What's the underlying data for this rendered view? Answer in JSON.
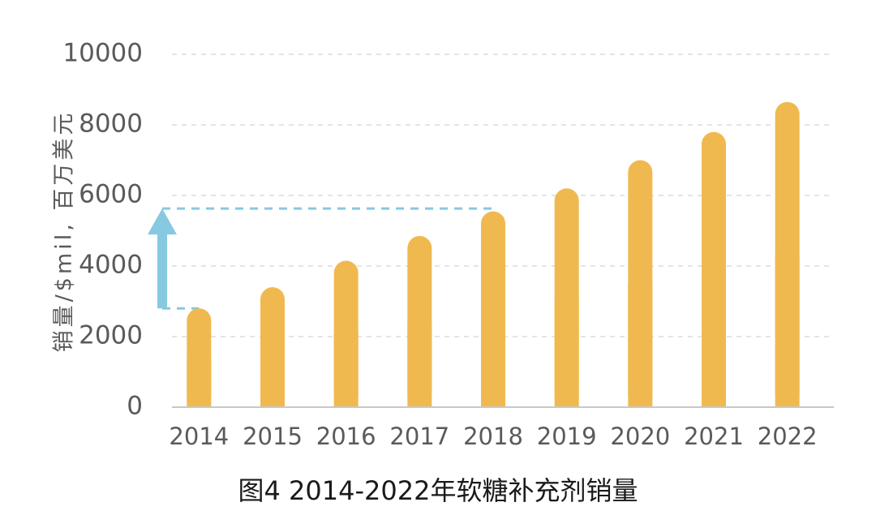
{
  "caption": "图4 2014-2022年软糖补充剂销量",
  "chart_data": {
    "type": "bar",
    "title": "",
    "xlabel": "",
    "ylabel": "销量/$mil, 百万美元",
    "categories": [
      "2014",
      "2015",
      "2016",
      "2017",
      "2018",
      "2019",
      "2020",
      "2021",
      "2022"
    ],
    "values": [
      2800,
      3400,
      4150,
      4850,
      5550,
      6200,
      7000,
      7800,
      8650
    ],
    "ylim": [
      0,
      10000
    ],
    "yticks": [
      "0",
      "2000",
      "4000",
      "6000",
      "8000",
      "10000"
    ],
    "grid": true,
    "bar_color": "#F0B94F",
    "annotation": {
      "type": "growth-arrow",
      "from_category": "2014",
      "to_category": "2018",
      "color": "#86C9E0"
    }
  }
}
